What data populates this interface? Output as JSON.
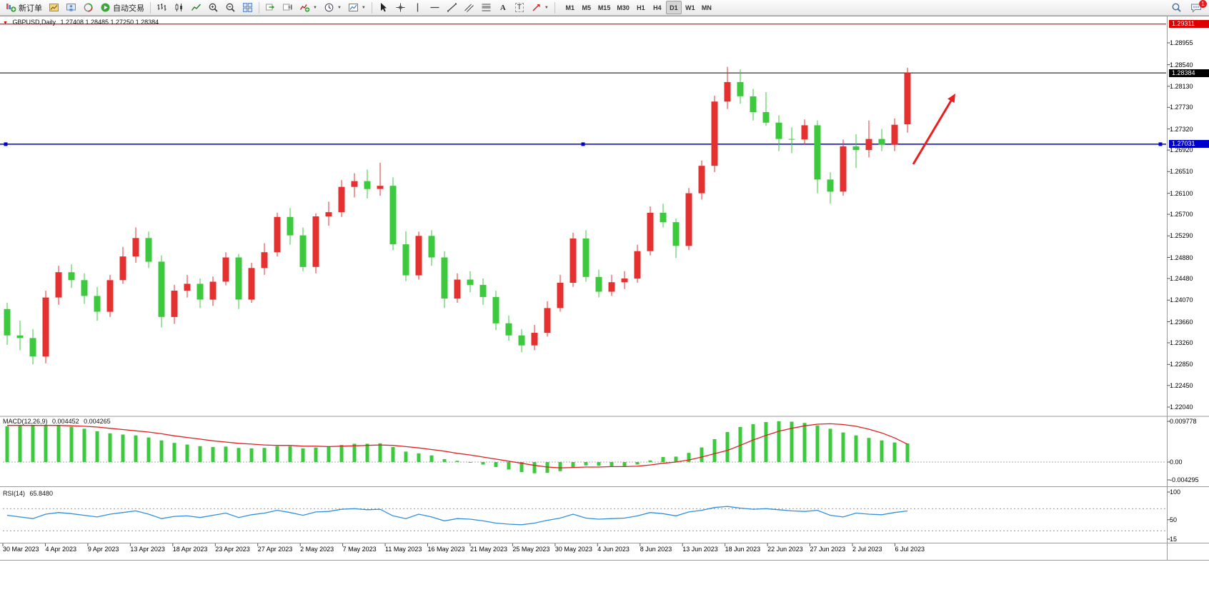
{
  "toolbar": {
    "new_order_label": "新订单",
    "autotrading_label": "自动交易",
    "timeframes": [
      "M1",
      "M5",
      "M15",
      "M30",
      "H1",
      "H4",
      "D1",
      "W1",
      "MN"
    ],
    "active_timeframe": "D1",
    "badge_count": "1"
  },
  "chart": {
    "symbol": "GBPUSD,Daily",
    "ohlc_text": "1.27408 1.28485 1.27250 1.28384",
    "open": "1.27408",
    "high": "1.28485",
    "low": "1.27250",
    "close": "1.28384"
  },
  "price_tags": {
    "alert": "1.29311",
    "bid": "1.28384",
    "support": "1.27031"
  },
  "price_scale_ticks": [
    "1.28955",
    "1.28540",
    "1.28130",
    "1.27730",
    "1.27320",
    "1.26920",
    "1.26510",
    "1.26100",
    "1.25700",
    "1.25290",
    "1.24880",
    "1.24480",
    "1.24070",
    "1.23660",
    "1.23260",
    "1.22850",
    "1.22450",
    "1.22040"
  ],
  "macd_panel": {
    "label": "MACD(12,26,9)",
    "value_main": "0.004452",
    "value_signal": "0.004265",
    "scale": [
      "0.009778",
      "0.00",
      "-0.004295"
    ]
  },
  "rsi_panel": {
    "label": "RSI(14)",
    "value": "65.8480",
    "scale": [
      "100",
      "50",
      "15"
    ]
  },
  "time_axis": {
    "labels": [
      "30 Mar 2023",
      "4 Apr 2023",
      "9 Apr 2023",
      "13 Apr 2023",
      "18 Apr 2023",
      "23 Apr 2023",
      "27 Apr 2023",
      "2 May 2023",
      "7 May 2023",
      "11 May 2023",
      "16 May 2023",
      "21 May 2023",
      "25 May 2023",
      "30 May 2023",
      "4 Jun 2023",
      "8 Jun 2023",
      "13 Jun 2023",
      "18 Jun 2023",
      "22 Jun 2023",
      "27 Jun 2023",
      "2 Jul 2023",
      "6 Jul 2023"
    ]
  },
  "colors": {
    "bull": "#e53030",
    "bear": "#3dc93d",
    "macd_hist": "#3dc93d",
    "macd_signal": "#dd2020",
    "rsi_line": "#2f8fe0",
    "alert_line": "#dd0000",
    "bid_line": "#000000",
    "support_line": "#0000cc",
    "arrow": "#ee1c1c"
  },
  "chart_data": {
    "type": "candlestick",
    "symbol": "GBPUSD",
    "timeframe": "Daily",
    "first_candle_date": "30 Mar 2023",
    "last_candle_date": "7 Jul 2023",
    "price_range_visible": [
      1.21891,
      1.29443
    ],
    "candles": [
      [
        1.239,
        1.2402,
        1.2322,
        1.234
      ],
      [
        1.234,
        1.2368,
        1.2312,
        1.2335
      ],
      [
        1.2335,
        1.2352,
        1.2285,
        1.23
      ],
      [
        1.23,
        1.2425,
        1.2287,
        1.2412
      ],
      [
        1.2412,
        1.2472,
        1.2398,
        1.246
      ],
      [
        1.246,
        1.2475,
        1.243,
        1.2445
      ],
      [
        1.2445,
        1.2458,
        1.24,
        1.2415
      ],
      [
        1.2415,
        1.2432,
        1.2368,
        1.2385
      ],
      [
        1.2385,
        1.2455,
        1.2375,
        1.2445
      ],
      [
        1.2445,
        1.2508,
        1.2438,
        1.249
      ],
      [
        1.249,
        1.2545,
        1.2478,
        1.2525
      ],
      [
        1.2525,
        1.2537,
        1.2468,
        1.248
      ],
      [
        1.248,
        1.2492,
        1.2355,
        1.2375
      ],
      [
        1.2375,
        1.2436,
        1.2362,
        1.2425
      ],
      [
        1.2425,
        1.2455,
        1.2412,
        1.2438
      ],
      [
        1.2438,
        1.2448,
        1.2392,
        1.2408
      ],
      [
        1.2408,
        1.2452,
        1.2396,
        1.2442
      ],
      [
        1.2442,
        1.2498,
        1.2435,
        1.2488
      ],
      [
        1.2488,
        1.2495,
        1.239,
        1.2408
      ],
      [
        1.2408,
        1.2478,
        1.2402,
        1.2468
      ],
      [
        1.2468,
        1.2515,
        1.2455,
        1.2498
      ],
      [
        1.2498,
        1.2573,
        1.249,
        1.2565
      ],
      [
        1.2565,
        1.2582,
        1.2512,
        1.253
      ],
      [
        1.253,
        1.2545,
        1.2462,
        1.247
      ],
      [
        1.247,
        1.2572,
        1.2458,
        1.2566
      ],
      [
        1.2566,
        1.2594,
        1.2548,
        1.2574
      ],
      [
        1.2574,
        1.2635,
        1.2565,
        1.2622
      ],
      [
        1.2622,
        1.2648,
        1.2602,
        1.2633
      ],
      [
        1.2633,
        1.2655,
        1.26,
        1.2618
      ],
      [
        1.2618,
        1.2668,
        1.2605,
        1.2624
      ],
      [
        1.2624,
        1.264,
        1.2502,
        1.2513
      ],
      [
        1.2513,
        1.2538,
        1.2443,
        1.2454
      ],
      [
        1.2454,
        1.2537,
        1.2446,
        1.2529
      ],
      [
        1.2529,
        1.254,
        1.2472,
        1.2488
      ],
      [
        1.2488,
        1.25,
        1.2392,
        1.241
      ],
      [
        1.241,
        1.2458,
        1.2402,
        1.2446
      ],
      [
        1.2446,
        1.2462,
        1.2422,
        1.2436
      ],
      [
        1.2436,
        1.2448,
        1.2398,
        1.2413
      ],
      [
        1.2413,
        1.2425,
        1.235,
        1.2363
      ],
      [
        1.2363,
        1.2378,
        1.233,
        1.234
      ],
      [
        1.234,
        1.2352,
        1.2308,
        1.2321
      ],
      [
        1.2321,
        1.236,
        1.2312,
        1.2345
      ],
      [
        1.2345,
        1.2405,
        1.2338,
        1.2392
      ],
      [
        1.2392,
        1.2455,
        1.2385,
        1.244
      ],
      [
        1.244,
        1.2535,
        1.2432,
        1.2524
      ],
      [
        1.2524,
        1.254,
        1.2442,
        1.2451
      ],
      [
        1.2451,
        1.2465,
        1.2412,
        1.2423
      ],
      [
        1.2423,
        1.2455,
        1.2415,
        1.2441
      ],
      [
        1.2441,
        1.2462,
        1.2428,
        1.2448
      ],
      [
        1.2448,
        1.2512,
        1.244,
        1.25
      ],
      [
        1.25,
        1.2585,
        1.2492,
        1.2573
      ],
      [
        1.2573,
        1.259,
        1.2545,
        1.2555
      ],
      [
        1.2555,
        1.2562,
        1.2487,
        1.251
      ],
      [
        1.251,
        1.262,
        1.2502,
        1.261
      ],
      [
        1.261,
        1.2672,
        1.2598,
        1.2662
      ],
      [
        1.2662,
        1.2795,
        1.265,
        1.2784
      ],
      [
        1.2784,
        1.285,
        1.277,
        1.2821
      ],
      [
        1.2821,
        1.2845,
        1.278,
        1.2794
      ],
      [
        1.2794,
        1.2808,
        1.2748,
        1.2764
      ],
      [
        1.2764,
        1.2802,
        1.2738,
        1.2744
      ],
      [
        1.2744,
        1.2758,
        1.269,
        1.2713
      ],
      [
        1.2713,
        1.2735,
        1.2686,
        1.2712
      ],
      [
        1.2712,
        1.275,
        1.2702,
        1.2739
      ],
      [
        1.2739,
        1.2748,
        1.261,
        1.2636
      ],
      [
        1.2636,
        1.265,
        1.259,
        1.2613
      ],
      [
        1.2613,
        1.2712,
        1.2605,
        1.2699
      ],
      [
        1.2699,
        1.2722,
        1.2658,
        1.2692
      ],
      [
        1.2692,
        1.2748,
        1.2678,
        1.2713
      ],
      [
        1.2713,
        1.2732,
        1.269,
        1.2702
      ],
      [
        1.2702,
        1.2752,
        1.269,
        1.274
      ],
      [
        1.27408,
        1.28485,
        1.2725,
        1.28384
      ]
    ],
    "hlines": [
      {
        "name": "alert",
        "price": 1.29311,
        "color": "#dd0000",
        "width": 1.2
      },
      {
        "name": "bid",
        "price": 1.28384,
        "color": "#000000",
        "width": 1
      },
      {
        "name": "support",
        "price": 1.27031,
        "color": "#0000cc",
        "width": 1.5
      }
    ],
    "arrow_annotation": {
      "direction": "up-right",
      "color": "#ee1c1c"
    },
    "macd": {
      "histogram": [
        0.0086,
        0.0087,
        0.0088,
        0.0089,
        0.0088,
        0.0085,
        0.008,
        0.0074,
        0.0069,
        0.0066,
        0.0064,
        0.0059,
        0.0052,
        0.0046,
        0.0042,
        0.0038,
        0.0036,
        0.0037,
        0.0034,
        0.0033,
        0.0034,
        0.0038,
        0.0038,
        0.0033,
        0.0035,
        0.0037,
        0.0041,
        0.0044,
        0.0044,
        0.0045,
        0.0036,
        0.0025,
        0.0021,
        0.0016,
        0.0007,
        0.0003,
        -0.0001,
        -0.0006,
        -0.0012,
        -0.0018,
        -0.0024,
        -0.0027,
        -0.0026,
        -0.0022,
        -0.0012,
        -0.0008,
        -0.0009,
        -0.001,
        -0.001,
        -0.0006,
        0.0004,
        0.0012,
        0.0013,
        0.0022,
        0.0035,
        0.0055,
        0.0072,
        0.0084,
        0.0091,
        0.0096,
        0.0098,
        0.0097,
        0.0094,
        0.0088,
        0.008,
        0.0071,
        0.0064,
        0.0058,
        0.0052,
        0.0047,
        0.004452
      ],
      "signal": [
        0.0088,
        0.0088,
        0.0088,
        0.0088,
        0.0088,
        0.0087,
        0.0086,
        0.0084,
        0.0081,
        0.0078,
        0.0075,
        0.0072,
        0.0068,
        0.0063,
        0.0059,
        0.0055,
        0.0051,
        0.0048,
        0.0045,
        0.0043,
        0.0041,
        0.004,
        0.004,
        0.0038,
        0.0038,
        0.0037,
        0.0038,
        0.0039,
        0.004,
        0.0041,
        0.004,
        0.0037,
        0.0034,
        0.003,
        0.0026,
        0.0021,
        0.0017,
        0.0012,
        0.0007,
        0.0002,
        -0.0003,
        -0.0008,
        -0.0012,
        -0.0014,
        -0.0013,
        -0.0012,
        -0.0012,
        -0.0011,
        -0.0011,
        -0.001,
        -0.0007,
        -0.0003,
        0.0,
        0.0005,
        0.0012,
        0.002,
        0.0028,
        0.004,
        0.0053,
        0.0064,
        0.0074,
        0.0081,
        0.0087,
        0.0091,
        0.0092,
        0.009,
        0.0086,
        0.0079,
        0.007,
        0.0058,
        0.004265
      ]
    },
    "rsi": {
      "values": [
        58,
        55,
        52,
        60,
        63,
        61,
        58,
        55,
        60,
        63,
        66,
        60,
        52,
        56,
        57,
        54,
        58,
        62,
        54,
        59,
        62,
        67,
        63,
        58,
        64,
        65,
        69,
        70,
        68,
        69,
        57,
        52,
        60,
        55,
        48,
        52,
        51,
        48,
        44,
        42,
        41,
        44,
        49,
        53,
        60,
        53,
        51,
        52,
        53,
        57,
        63,
        61,
        57,
        64,
        67,
        72,
        74,
        71,
        69,
        70,
        68,
        66,
        65,
        67,
        58,
        55,
        62,
        60,
        59,
        63,
        65.85
      ],
      "levels": [
        70,
        30
      ]
    }
  }
}
